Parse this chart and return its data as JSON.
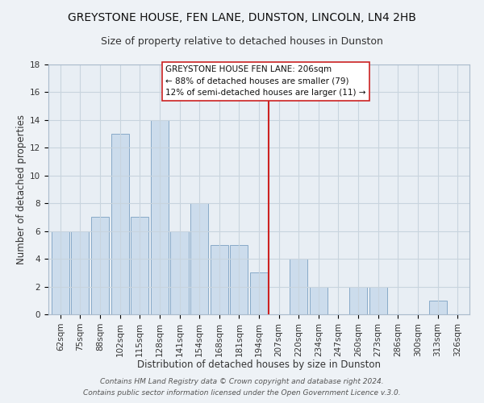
{
  "title": "GREYSTONE HOUSE, FEN LANE, DUNSTON, LINCOLN, LN4 2HB",
  "subtitle": "Size of property relative to detached houses in Dunston",
  "xlabel": "Distribution of detached houses by size in Dunston",
  "ylabel": "Number of detached properties",
  "bar_labels": [
    "62sqm",
    "75sqm",
    "88sqm",
    "102sqm",
    "115sqm",
    "128sqm",
    "141sqm",
    "154sqm",
    "168sqm",
    "181sqm",
    "194sqm",
    "207sqm",
    "220sqm",
    "234sqm",
    "247sqm",
    "260sqm",
    "273sqm",
    "286sqm",
    "300sqm",
    "313sqm",
    "326sqm"
  ],
  "bar_values": [
    6,
    6,
    7,
    13,
    7,
    14,
    6,
    8,
    5,
    5,
    3,
    0,
    4,
    2,
    0,
    2,
    2,
    0,
    0,
    1,
    0
  ],
  "bar_color": "#ccdcec",
  "bar_edge_color": "#88aac8",
  "ylim": [
    0,
    18
  ],
  "yticks": [
    0,
    2,
    4,
    6,
    8,
    10,
    12,
    14,
    16,
    18
  ],
  "annotation_title": "GREYSTONE HOUSE FEN LANE: 206sqm",
  "annotation_line1": "← 88% of detached houses are smaller (79)",
  "annotation_line2": "12% of semi-detached houses are larger (11) →",
  "footer_line1": "Contains HM Land Registry data © Crown copyright and database right 2024.",
  "footer_line2": "Contains public sector information licensed under the Open Government Licence v.3.0.",
  "background_color": "#eef2f6",
  "plot_bg_color": "#e8eef4",
  "grid_color": "#c8d4de",
  "title_fontsize": 10,
  "subtitle_fontsize": 9,
  "axis_label_fontsize": 8.5,
  "tick_fontsize": 7.5,
  "annotation_fontsize": 7.5,
  "footer_fontsize": 6.5
}
